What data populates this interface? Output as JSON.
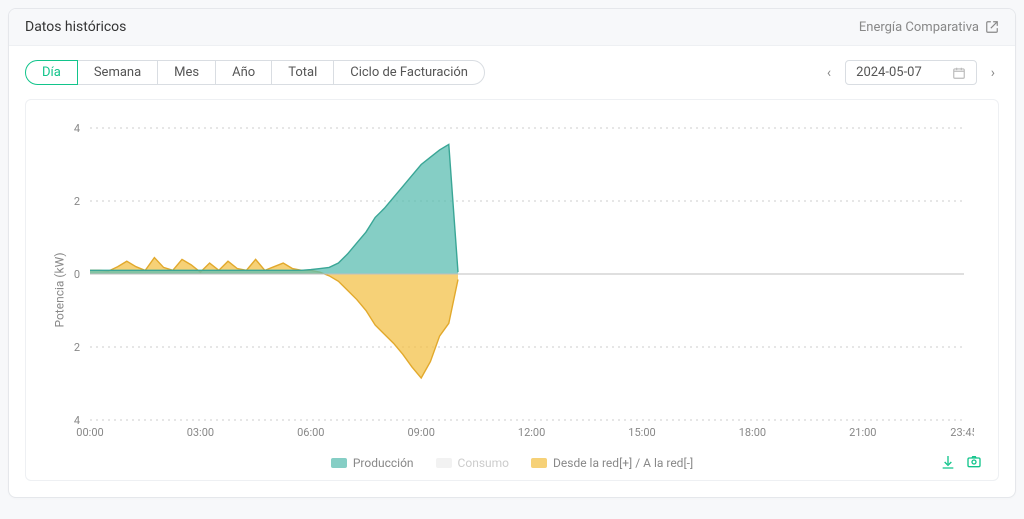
{
  "header": {
    "title": "Datos históricos",
    "compare_label": "Energía Comparativa"
  },
  "tabs": {
    "items": [
      "Día",
      "Semana",
      "Mes",
      "Año",
      "Total",
      "Ciclo de Facturación"
    ],
    "active_index": 0
  },
  "date_nav": {
    "date": "2024-05-07"
  },
  "chart": {
    "type": "area",
    "ylabel": "Potencia  (kW)",
    "y_min": -4,
    "y_max": 4,
    "y_ticks": [
      4,
      2,
      0,
      2,
      4
    ],
    "y_tick_values": [
      4,
      2,
      0,
      -2,
      -4
    ],
    "x_labels": [
      "00:00",
      "03:00",
      "06:00",
      "09:00",
      "12:00",
      "15:00",
      "18:00",
      "21:00",
      "23:45"
    ],
    "x_step_minutes": 15,
    "x_end_index": 40,
    "grid_color": "#cccccc",
    "zero_line_color": "#bfbfbf",
    "background_color": "#ffffff",
    "series": {
      "production": {
        "label": "Producción",
        "color_fill": "#5cbdb1",
        "color_line": "#3aa696",
        "opacity": 0.75,
        "values": [
          0.1,
          0.1,
          0.1,
          0.1,
          0.1,
          0.1,
          0.1,
          0.1,
          0.1,
          0.1,
          0.1,
          0.1,
          0.1,
          0.1,
          0.1,
          0.1,
          0.1,
          0.1,
          0.1,
          0.1,
          0.1,
          0.1,
          0.1,
          0.1,
          0.12,
          0.15,
          0.18,
          0.3,
          0.55,
          0.85,
          1.15,
          1.55,
          1.8,
          2.1,
          2.4,
          2.7,
          3.0,
          3.2,
          3.4,
          3.55,
          0.05
        ]
      },
      "consumption": {
        "label": "Consumo",
        "color_fill": "#e6e6e6",
        "color_line": "#dddddd",
        "opacity": 0.5,
        "values": []
      },
      "grid": {
        "label": "Desde la red[+] / A la red[-]",
        "color_fill": "#f3c24a",
        "color_line": "#e2a92c",
        "opacity": 0.75,
        "values": [
          0.1,
          0.1,
          0.08,
          0.2,
          0.35,
          0.2,
          0.1,
          0.45,
          0.18,
          0.1,
          0.4,
          0.25,
          0.05,
          0.3,
          0.1,
          0.35,
          0.15,
          0.1,
          0.4,
          0.1,
          0.2,
          0.3,
          0.15,
          0.1,
          0.1,
          0.05,
          -0.05,
          -0.2,
          -0.45,
          -0.7,
          -1.0,
          -1.4,
          -1.65,
          -1.9,
          -2.2,
          -2.55,
          -2.85,
          -2.4,
          -1.7,
          -1.35,
          -0.15
        ]
      }
    },
    "legend_order": [
      "production",
      "consumption",
      "grid"
    ]
  },
  "icons": {
    "download": "download-icon",
    "photo": "photo-icon",
    "external": "external-link-icon",
    "calendar": "calendar-icon"
  }
}
